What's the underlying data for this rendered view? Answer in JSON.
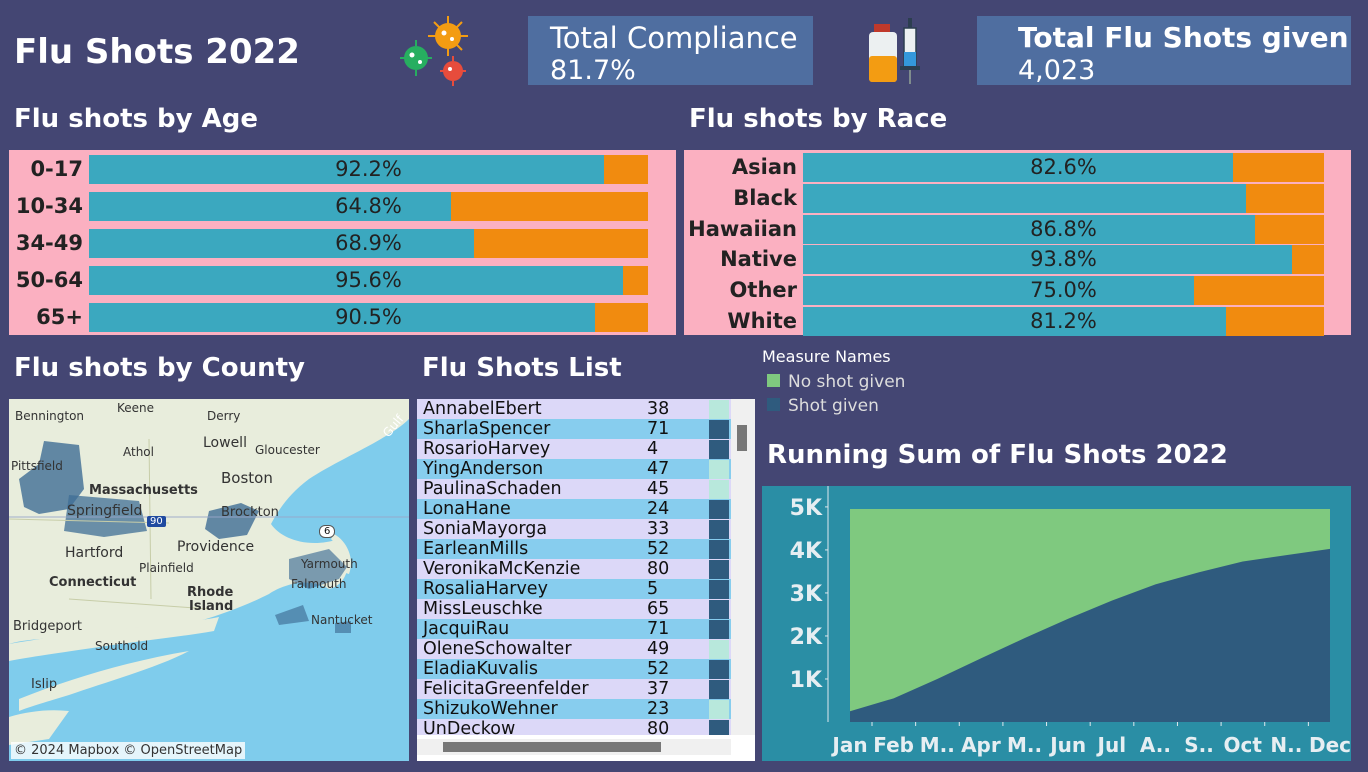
{
  "dashboard": {
    "title": "Flu Shots 2022",
    "kpi_compliance": {
      "label": "Total Compliance",
      "value": "81.7%"
    },
    "kpi_total": {
      "label": "Total Flu Shots given",
      "value": "4,023"
    }
  },
  "sections": {
    "age": "Flu shots by Age",
    "race": "Flu shots by Race",
    "county": "Flu shots by County",
    "list": "Flu Shots List",
    "running": "Running Sum of Flu Shots 2022"
  },
  "colors": {
    "shot": "#3ba8bf",
    "no_shot": "#f18b0f",
    "panel": "#fbb0c1",
    "bg": "#444673",
    "area_shot": "#2f5b7e",
    "area_no": "#7fc97f"
  },
  "chart_data": [
    {
      "type": "bar",
      "id": "age",
      "categories": [
        "0-17",
        "10-34",
        "34-49",
        "50-64",
        "65+"
      ],
      "values": [
        92.2,
        64.8,
        68.9,
        95.6,
        90.5
      ],
      "labels": [
        "92.2%",
        "64.8%",
        "68.9%",
        "95.6%",
        "90.5%"
      ]
    },
    {
      "type": "bar",
      "id": "race",
      "categories": [
        "Asian",
        "Black",
        "Hawaiian",
        "Native",
        "Other",
        "White"
      ],
      "values": [
        82.6,
        85.0,
        86.8,
        93.8,
        75.0,
        81.2
      ],
      "labels": [
        "82.6%",
        "",
        "86.8%",
        "93.8%",
        "75.0%",
        "81.2%"
      ]
    },
    {
      "type": "area",
      "id": "running",
      "legend_title": "Measure Names",
      "x": [
        "Jan",
        "Feb",
        "M..",
        "Apr",
        "M..",
        "Jun",
        "Jul",
        "A..",
        "S..",
        "Oct",
        "N..",
        "Dec"
      ],
      "series": [
        {
          "name": "Shot given",
          "values": [
            250,
            550,
            1000,
            1480,
            1950,
            2400,
            2820,
            3200,
            3480,
            3730,
            3880,
            4023
          ]
        },
        {
          "name": "No shot given",
          "values": [
            4950,
            4950,
            4950,
            4950,
            4950,
            4950,
            4950,
            4950,
            4950,
            4950,
            4950,
            4950
          ]
        }
      ],
      "yticks": [
        "1K",
        "2K",
        "3K",
        "4K",
        "5K"
      ],
      "ylim": [
        0,
        5000
      ]
    }
  ],
  "map": {
    "attribution": "© 2024 Mapbox © OpenStreetMap",
    "labels": [
      "Bennington",
      "Keene",
      "Derry",
      "Gulf",
      "Pittsfield",
      "Athol",
      "Lowell",
      "Gloucester",
      "Boston",
      "Massachusetts",
      "Springfield",
      "Brockton",
      "Hartford",
      "Providence",
      "Plainfield",
      "Yarmouth",
      "Connecticut",
      "Rhode",
      "Island",
      "Falmouth",
      "Nantucket",
      "Bridgeport",
      "Southold",
      "Islip",
      "90",
      "6"
    ]
  },
  "shot_list": [
    {
      "name": "AnnabelEbert",
      "age": "38",
      "shot": false
    },
    {
      "name": "SharlaSpencer",
      "age": "71",
      "shot": true
    },
    {
      "name": "RosarioHarvey",
      "age": "4",
      "shot": true
    },
    {
      "name": "YingAnderson",
      "age": "47",
      "shot": false
    },
    {
      "name": "PaulinaSchaden",
      "age": "45",
      "shot": false
    },
    {
      "name": "LonaHane",
      "age": "24",
      "shot": true
    },
    {
      "name": "SoniaMayorga",
      "age": "33",
      "shot": true
    },
    {
      "name": "EarleanMills",
      "age": "52",
      "shot": true
    },
    {
      "name": "VeronikaMcKenzie",
      "age": "80",
      "shot": true
    },
    {
      "name": "RosaliaHarvey",
      "age": "5",
      "shot": true
    },
    {
      "name": "MissLeuschke",
      "age": "65",
      "shot": true
    },
    {
      "name": "JacquiRau",
      "age": "71",
      "shot": true
    },
    {
      "name": "OleneSchowalter",
      "age": "49",
      "shot": false
    },
    {
      "name": "EladiaKuvalis",
      "age": "52",
      "shot": true
    },
    {
      "name": "FelicitaGreenfelder",
      "age": "37",
      "shot": true
    },
    {
      "name": "ShizukoWehner",
      "age": "23",
      "shot": false
    },
    {
      "name": "UnDeckow",
      "age": "80",
      "shot": true
    }
  ]
}
